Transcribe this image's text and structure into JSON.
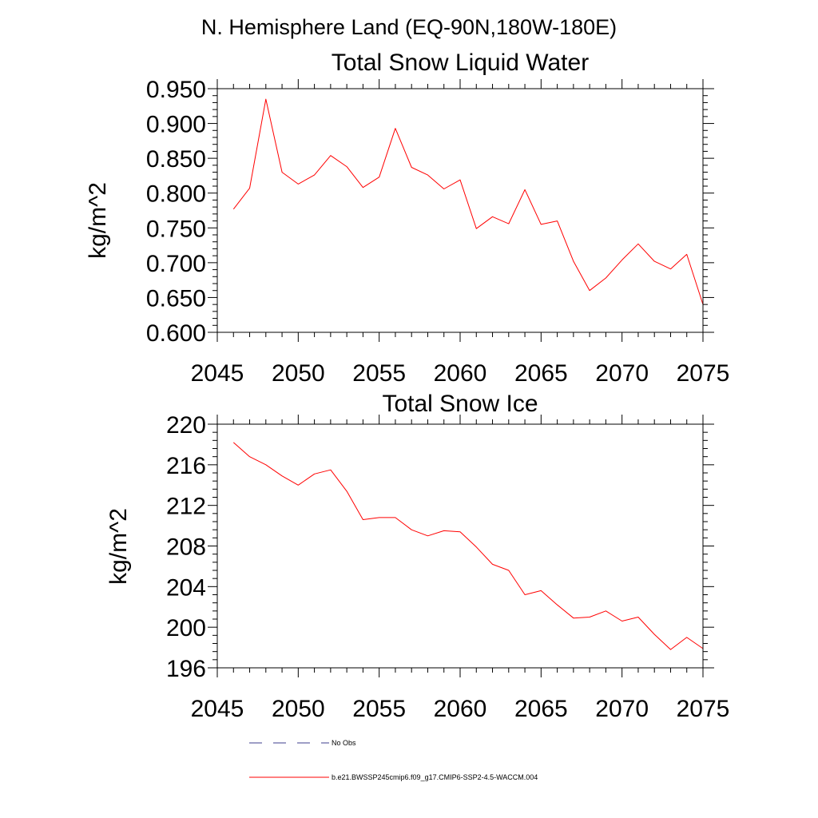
{
  "page_title": "N. Hemisphere Land (EQ-90N,180W-180E)",
  "colors": {
    "series": "#ff0000",
    "obs": "#3c3c8c",
    "axis": "#000000"
  },
  "legend": {
    "entries": [
      {
        "label": "No Obs",
        "style": "dashed",
        "color": "#3c3c8c"
      },
      {
        "label": "b.e21.BWSSP245cmip6.f09_g17.CMIP6-SSP2-4.5-WACCM.004",
        "style": "solid",
        "color": "#ff0000"
      }
    ]
  },
  "chart_data": [
    {
      "type": "line",
      "title": "Total Snow Liquid Water",
      "xlabel": "",
      "ylabel": "kg/m^2",
      "xlim": [
        2045,
        2075
      ],
      "ylim": [
        0.6,
        0.95
      ],
      "xticks": [
        "2045",
        "2050",
        "2055",
        "2060",
        "2065",
        "2070",
        "2075"
      ],
      "yticks": [
        "0.600",
        "0.650",
        "0.700",
        "0.750",
        "0.800",
        "0.850",
        "0.900",
        "0.950"
      ],
      "grid": false,
      "series": [
        {
          "color": "#ff0000",
          "x": [
            2046,
            2047,
            2048,
            2049,
            2050,
            2051,
            2052,
            2053,
            2054,
            2055,
            2056,
            2057,
            2058,
            2059,
            2060,
            2061,
            2062,
            2063,
            2064,
            2065,
            2066,
            2067,
            2068,
            2069,
            2070,
            2071,
            2072,
            2073,
            2074,
            2075
          ],
          "values": [
            0.777,
            0.807,
            0.935,
            0.83,
            0.813,
            0.826,
            0.854,
            0.838,
            0.808,
            0.823,
            0.893,
            0.837,
            0.826,
            0.806,
            0.819,
            0.749,
            0.766,
            0.756,
            0.805,
            0.755,
            0.76,
            0.702,
            0.66,
            0.678,
            0.704,
            0.727,
            0.702,
            0.691,
            0.712,
            0.64
          ]
        }
      ]
    },
    {
      "type": "line",
      "title": "Total Snow Ice",
      "xlabel": "",
      "ylabel": "kg/m^2",
      "xlim": [
        2045,
        2075
      ],
      "ylim": [
        196,
        220
      ],
      "xticks": [
        "2045",
        "2050",
        "2055",
        "2060",
        "2065",
        "2070",
        "2075"
      ],
      "yticks": [
        "196",
        "200",
        "204",
        "208",
        "212",
        "216",
        "220"
      ],
      "grid": false,
      "series": [
        {
          "color": "#ff0000",
          "x": [
            2046,
            2047,
            2048,
            2049,
            2050,
            2051,
            2052,
            2053,
            2054,
            2055,
            2056,
            2057,
            2058,
            2059,
            2060,
            2061,
            2062,
            2063,
            2064,
            2065,
            2066,
            2067,
            2068,
            2069,
            2070,
            2071,
            2072,
            2073,
            2074,
            2075
          ],
          "values": [
            218.2,
            216.8,
            216.0,
            214.9,
            214.0,
            215.1,
            215.5,
            213.4,
            210.6,
            210.8,
            210.8,
            209.6,
            209.0,
            209.5,
            209.4,
            207.9,
            206.2,
            205.6,
            203.2,
            203.6,
            202.2,
            200.9,
            201.0,
            201.6,
            200.6,
            201.0,
            199.3,
            197.8,
            199.0,
            197.9
          ]
        }
      ]
    }
  ]
}
